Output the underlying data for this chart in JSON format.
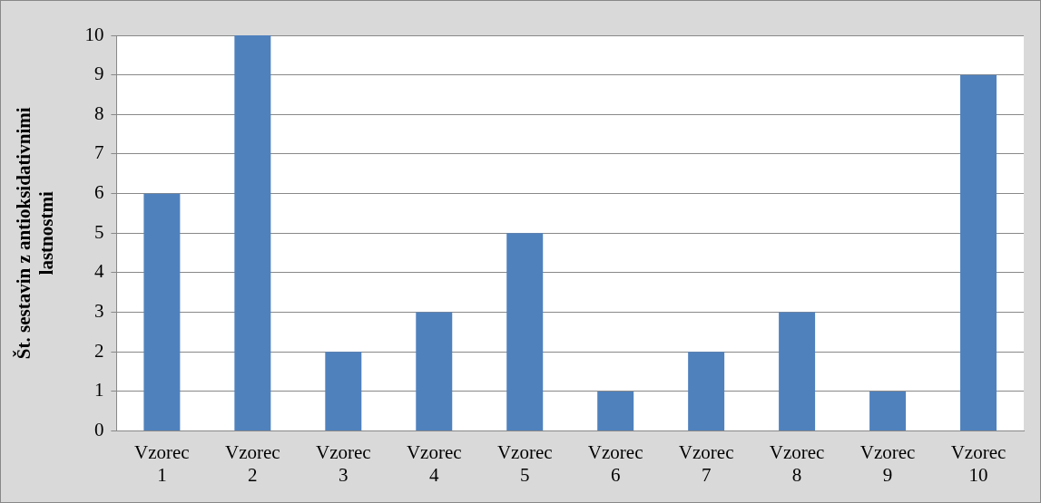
{
  "chart_data": {
    "type": "bar",
    "ylabel": "Št. sestavin z antioksidativnimi lastnostmi",
    "categories": [
      "Vzorec 1",
      "Vzorec 2",
      "Vzorec 3",
      "Vzorec 4",
      "Vzorec 5",
      "Vzorec 6",
      "Vzorec 7",
      "Vzorec 8",
      "Vzorec 9",
      "Vzorec 10"
    ],
    "values": [
      6,
      10,
      2,
      3,
      5,
      1,
      2,
      3,
      1,
      9
    ],
    "color": "#4f81bd",
    "ylim": [
      0,
      10
    ],
    "yticks": [
      0,
      1,
      2,
      3,
      4,
      5,
      6,
      7,
      8,
      9,
      10
    ],
    "grid": "y",
    "legend": false
  }
}
